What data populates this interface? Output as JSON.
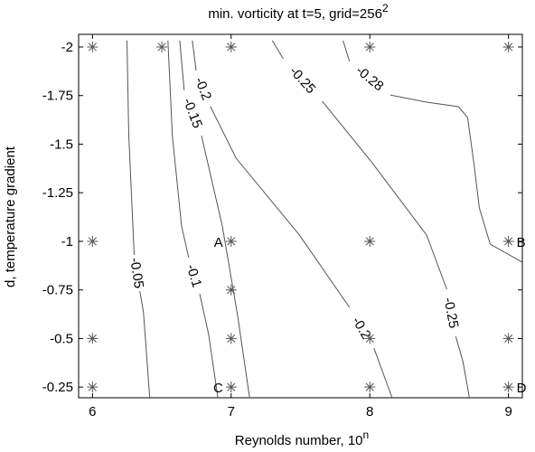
{
  "chart_data": {
    "type": "contour",
    "title": "min. vorticity at t=5, grid=256",
    "title_sup": "2",
    "xlabel": "Reynolds number, 10",
    "xlabel_sup": "n",
    "ylabel": "d, temperature gradient",
    "xlim": [
      5.9,
      9.1
    ],
    "xticks": [
      6,
      7,
      8,
      9
    ],
    "ylim": [
      -2.065,
      -0.195
    ],
    "yticks": [
      -2,
      -1.75,
      -1.5,
      -1.25,
      -1,
      -0.75,
      -0.5,
      -0.25
    ],
    "y_reversed": true,
    "color": "#555555",
    "contours": [
      {
        "level": -0.05,
        "x": [
          6.249,
          6.262,
          6.301,
          null,
          6.341,
          6.367,
          6.413
        ],
        "y": [
          -2.033,
          -1.544,
          -0.93,
          null,
          -0.744,
          -0.637,
          -0.195
        ]
      },
      {
        "level": -0.1,
        "x": [
          6.544,
          6.576,
          6.642,
          6.694,
          null,
          6.773,
          6.838,
          6.904
        ],
        "y": [
          -2.033,
          -1.544,
          -1.079,
          -0.916,
          null,
          -0.73,
          -0.52,
          -0.195
        ]
      },
      {
        "level": -0.15,
        "x": [
          6.629,
          6.661,
          null,
          6.786,
          6.936,
          7.048,
          7.133
        ],
        "y": [
          -2.033,
          -1.777,
          null,
          -1.544,
          -1.079,
          -0.613,
          -0.195
        ]
      },
      {
        "level": -0.2,
        "x": [
          6.72,
          6.747,
          null,
          6.851,
          7.035,
          7.493,
          7.853,
          null,
          8.03,
          8.161
        ],
        "y": [
          -2.033,
          -1.879,
          null,
          -1.693,
          -1.428,
          -1.032,
          -0.66,
          null,
          -0.45,
          -0.195
        ]
      },
      {
        "level": -0.25,
        "x": [
          7.297,
          7.375,
          null,
          7.657,
          8.017,
          8.41,
          8.555,
          null,
          8.62,
          8.672,
          8.718
        ],
        "y": [
          -2.033,
          -1.94,
          null,
          -1.721,
          -1.404,
          -1.032,
          -0.753,
          null,
          -0.511,
          -0.381,
          -0.195
        ]
      },
      {
        "level": -0.28,
        "x": [
          7.807,
          7.853,
          null,
          8.148,
          8.41,
          8.639,
          8.705,
          8.75,
          8.79,
          8.868,
          9.098
        ],
        "y": [
          -2.033,
          -1.926,
          null,
          -1.753,
          -1.716,
          -1.693,
          -1.637,
          -1.404,
          -1.172,
          -0.986,
          -0.893
        ]
      }
    ],
    "points": {
      "x": [
        6,
        6.5,
        7,
        8,
        9,
        6,
        7,
        8,
        9,
        7,
        6,
        7,
        8,
        9,
        6,
        7,
        8,
        9
      ],
      "y": [
        -2,
        -2,
        -2,
        -2,
        -2,
        -1,
        -1,
        -1,
        -1,
        -0.75,
        -0.5,
        -0.5,
        -0.5,
        -0.5,
        -0.25,
        -0.25,
        -0.25,
        -0.25
      ],
      "labels": [
        null,
        null,
        null,
        null,
        null,
        null,
        "A",
        null,
        "B",
        null,
        null,
        null,
        null,
        null,
        null,
        "C",
        null,
        "D"
      ]
    }
  }
}
